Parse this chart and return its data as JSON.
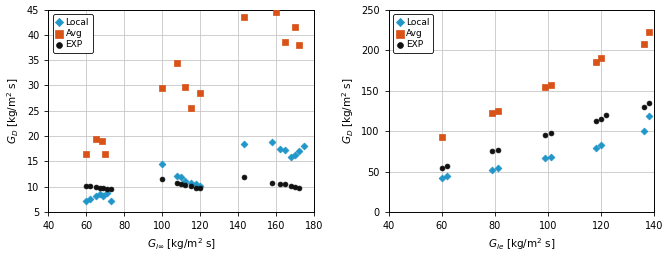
{
  "left": {
    "xlabel": "$G_{l\\infty}$ [kg/m$^2$ s]",
    "ylabel": "$G_D$ [kg/m$^2$ s]",
    "xlim": [
      40,
      180
    ],
    "ylim": [
      5,
      45
    ],
    "xticks": [
      40,
      60,
      80,
      100,
      120,
      140,
      160,
      180
    ],
    "yticks": [
      5,
      10,
      15,
      20,
      25,
      30,
      35,
      40,
      45
    ],
    "local_x": [
      60,
      62,
      65,
      67,
      69,
      71,
      73,
      100,
      108,
      110,
      112,
      115,
      118,
      120,
      143,
      158,
      162,
      165,
      168,
      170,
      172,
      175
    ],
    "local_y": [
      7.2,
      7.6,
      8.2,
      8.5,
      8.1,
      8.8,
      7.2,
      14.5,
      12.2,
      12.0,
      11.2,
      10.8,
      10.5,
      10.2,
      18.5,
      18.8,
      17.5,
      17.2,
      15.8,
      16.2,
      17.0,
      18.0
    ],
    "avg_x": [
      60,
      65,
      68,
      70,
      100,
      108,
      112,
      115,
      120,
      143,
      160,
      165,
      170,
      172
    ],
    "avg_y": [
      16.5,
      19.5,
      19.0,
      16.5,
      29.5,
      34.5,
      29.8,
      25.5,
      28.5,
      43.5,
      44.5,
      38.5,
      41.5,
      38.0
    ],
    "exp_x": [
      60,
      62,
      65,
      67,
      69,
      71,
      73,
      100,
      108,
      110,
      112,
      115,
      118,
      120,
      143,
      158,
      162,
      165,
      168,
      170,
      172
    ],
    "exp_y": [
      10.2,
      10.1,
      10.0,
      9.8,
      9.7,
      9.6,
      9.5,
      11.5,
      10.8,
      10.5,
      10.3,
      10.1,
      9.8,
      9.7,
      12.0,
      10.8,
      10.5,
      10.5,
      10.1,
      10.0,
      9.7
    ]
  },
  "right": {
    "xlabel": "$G_{le}$ [kg/m$^2$ s]",
    "ylabel": "$G_D$ [kg/m$^2$ s]",
    "xlim": [
      40,
      140
    ],
    "ylim": [
      0,
      250
    ],
    "xticks": [
      40,
      60,
      80,
      100,
      120,
      140
    ],
    "yticks": [
      0,
      50,
      100,
      150,
      200,
      250
    ],
    "local_x": [
      60,
      62,
      79,
      81,
      99,
      101,
      118,
      120,
      136,
      138
    ],
    "local_y": [
      42,
      44,
      52,
      55,
      67,
      68,
      79,
      83,
      100,
      118
    ],
    "avg_x": [
      60,
      79,
      81,
      99,
      101,
      118,
      120,
      136,
      138
    ],
    "avg_y": [
      93,
      122,
      125,
      155,
      157,
      185,
      190,
      208,
      222
    ],
    "exp_x": [
      60,
      62,
      79,
      81,
      99,
      101,
      118,
      120,
      122,
      136,
      138
    ],
    "exp_y": [
      55,
      57,
      75,
      77,
      95,
      97,
      113,
      115,
      120,
      130,
      135
    ]
  },
  "local_color": "#2196c8",
  "avg_color": "#d95319",
  "exp_color": "#111111",
  "marker_local": "D",
  "marker_avg": "s",
  "marker_exp": "o",
  "markersize_local": 3.5,
  "markersize_avg": 4.5,
  "markersize_exp": 3.5,
  "legend_labels": [
    "Local",
    "Avg",
    "EXP"
  ],
  "tick_fontsize": 7,
  "label_fontsize": 7.5,
  "legend_fontsize": 6.5,
  "figsize": [
    6.69,
    2.58
  ],
  "dpi": 100
}
